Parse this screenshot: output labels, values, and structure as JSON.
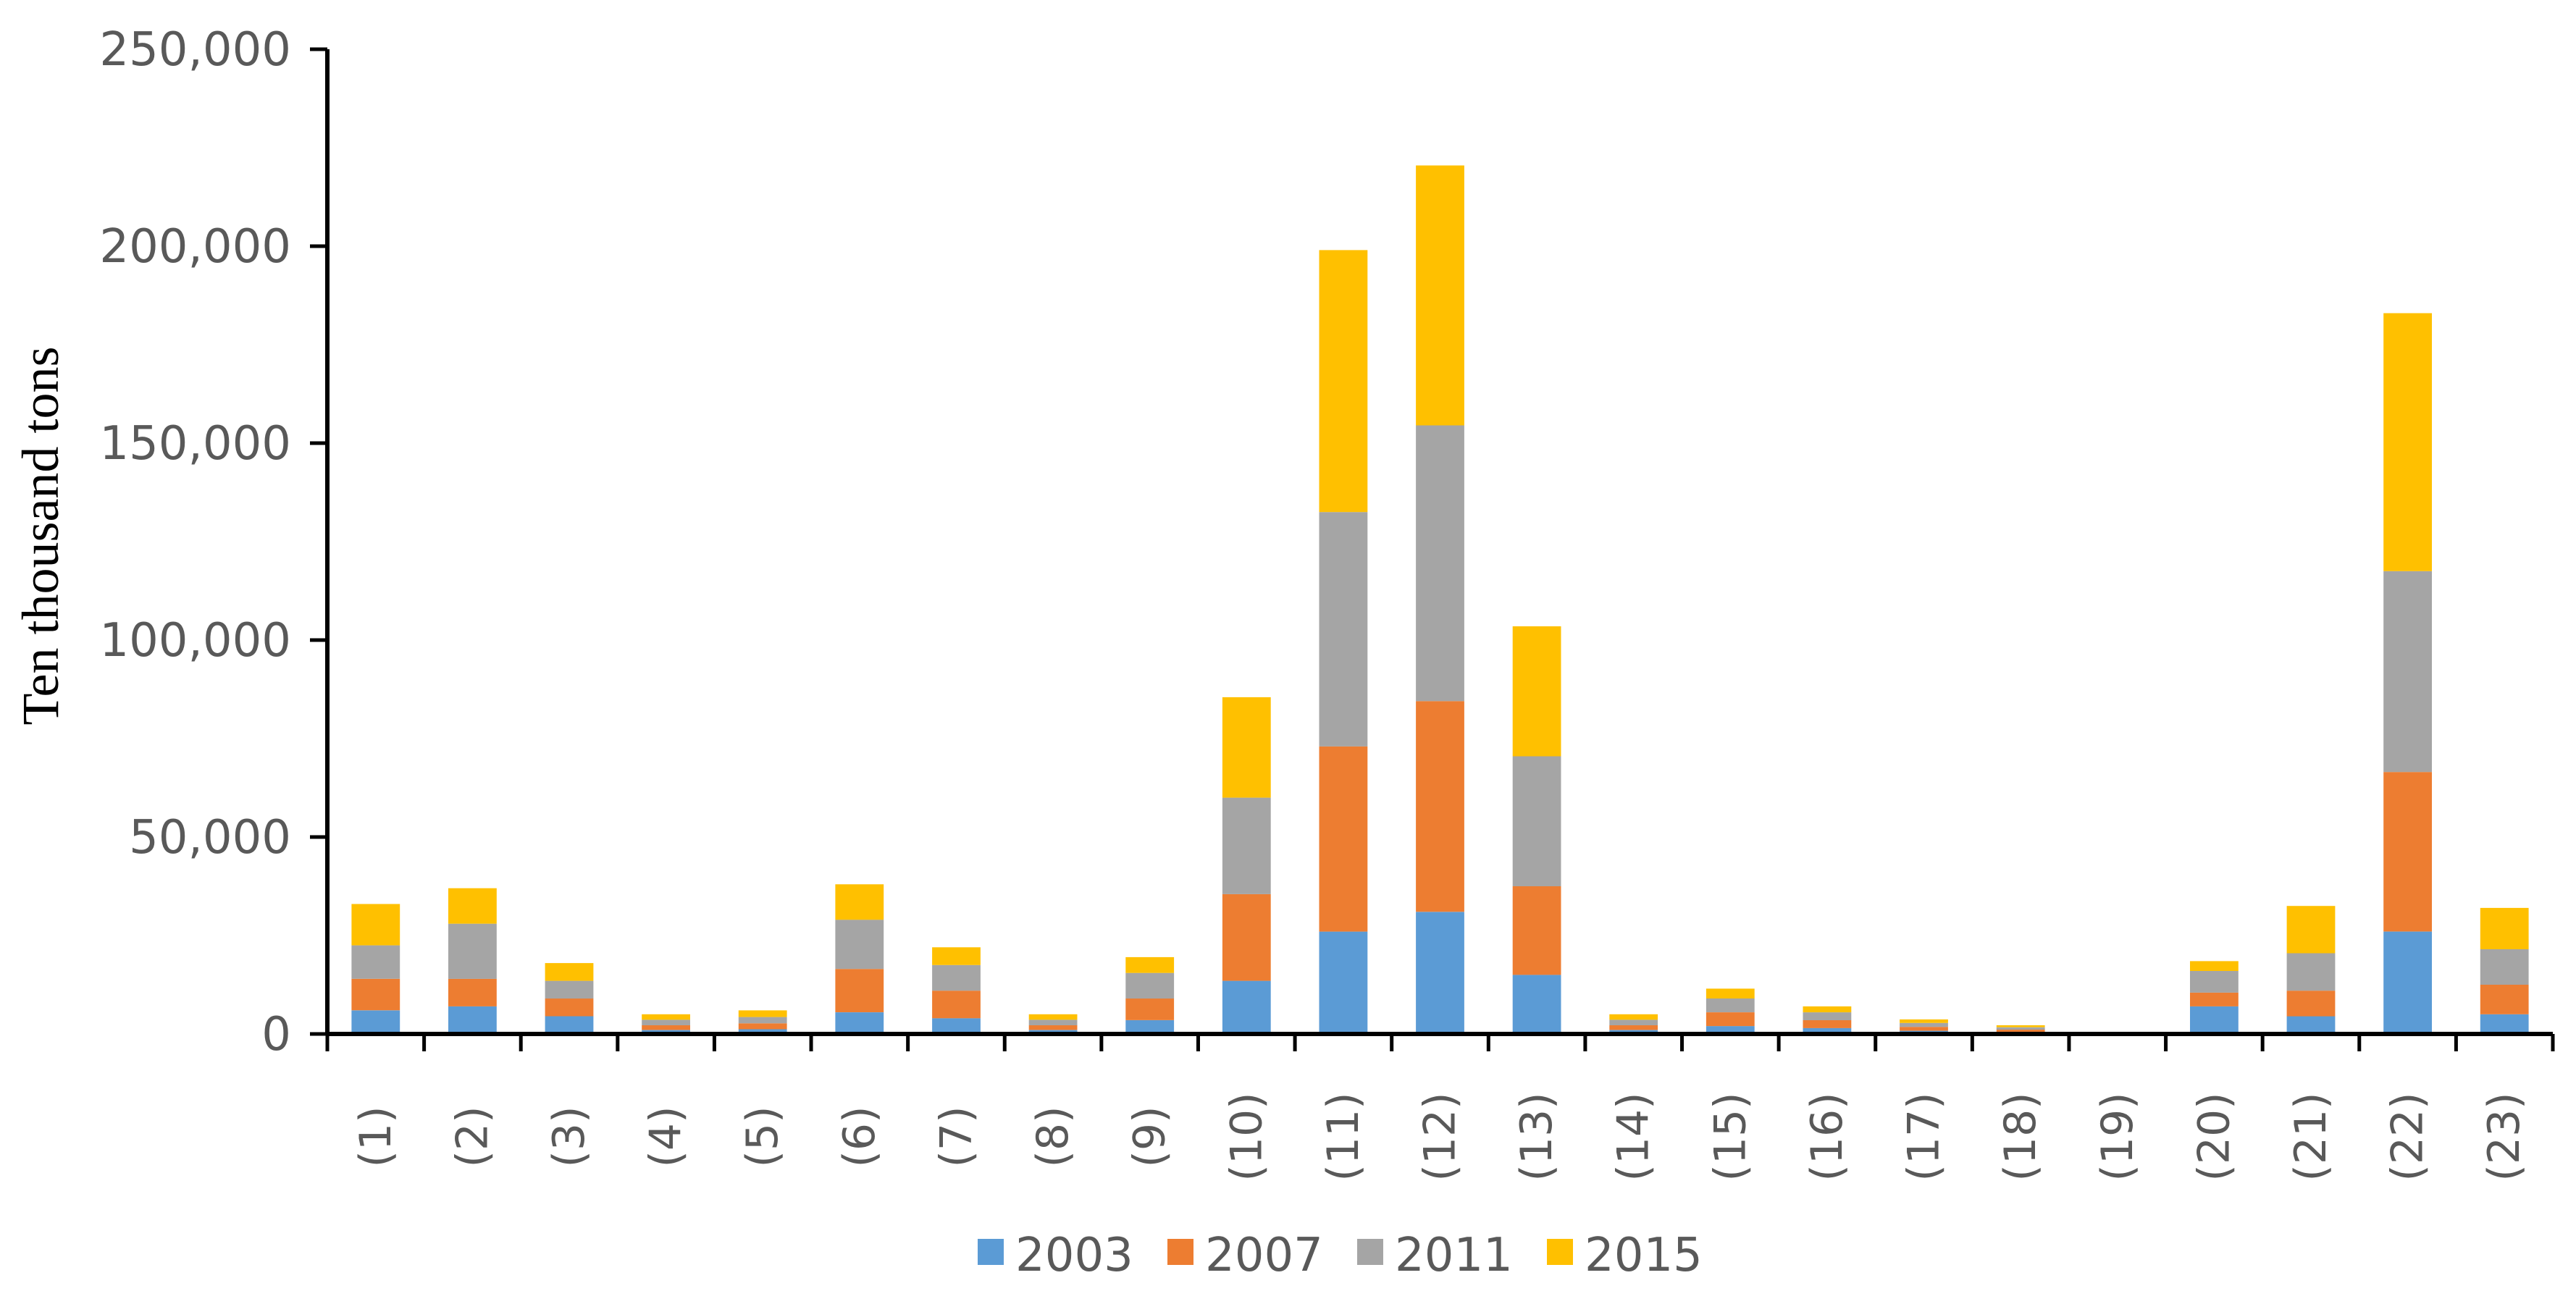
{
  "chart_data": {
    "type": "bar",
    "stacked": true,
    "ylabel": "Ten thousand tons",
    "ylim": [
      0,
      250000
    ],
    "yticks": [
      0,
      50000,
      100000,
      150000,
      200000,
      250000
    ],
    "ytick_labels": [
      "0",
      "50,000",
      "100,000",
      "150,000",
      "200,000",
      "250,000"
    ],
    "grid": false,
    "legend_position": "bottom",
    "categories": [
      "(1)",
      "(2)",
      "(3)",
      "(4)",
      "(5)",
      "(6)",
      "(7)",
      "(8)",
      "(9)",
      "(10)",
      "(11)",
      "(12)",
      "(13)",
      "(14)",
      "(15)",
      "(16)",
      "(17)",
      "(18)",
      "(19)",
      "(20)",
      "(21)",
      "(22)",
      "(23)"
    ],
    "series": [
      {
        "name": "2003",
        "color": "#5B9BD5",
        "values": [
          6000,
          7000,
          4500,
          1000,
          1200,
          5500,
          4000,
          1000,
          3500,
          13500,
          26000,
          31000,
          15000,
          1000,
          2000,
          1500,
          800,
          500,
          0,
          7000,
          4500,
          26000,
          5000
        ]
      },
      {
        "name": "2007",
        "color": "#ED7D31",
        "values": [
          8000,
          7000,
          4500,
          1200,
          1500,
          11000,
          7000,
          1200,
          5500,
          22000,
          47000,
          53500,
          22500,
          1200,
          3500,
          2000,
          1000,
          600,
          0,
          3500,
          6500,
          40500,
          7500
        ]
      },
      {
        "name": "2011",
        "color": "#A5A5A5",
        "values": [
          8500,
          14000,
          4500,
          1400,
          1600,
          12500,
          6500,
          1400,
          6500,
          24500,
          59500,
          70000,
          33000,
          1400,
          3500,
          2000,
          1000,
          600,
          0,
          5500,
          9500,
          51000,
          9000
        ]
      },
      {
        "name": "2015",
        "color": "#FFC000",
        "values": [
          10500,
          9000,
          4500,
          1400,
          1700,
          9000,
          4500,
          1400,
          4000,
          25500,
          66500,
          66000,
          33000,
          1400,
          2500,
          1500,
          900,
          500,
          0,
          2500,
          12000,
          65500,
          10500
        ]
      }
    ]
  }
}
